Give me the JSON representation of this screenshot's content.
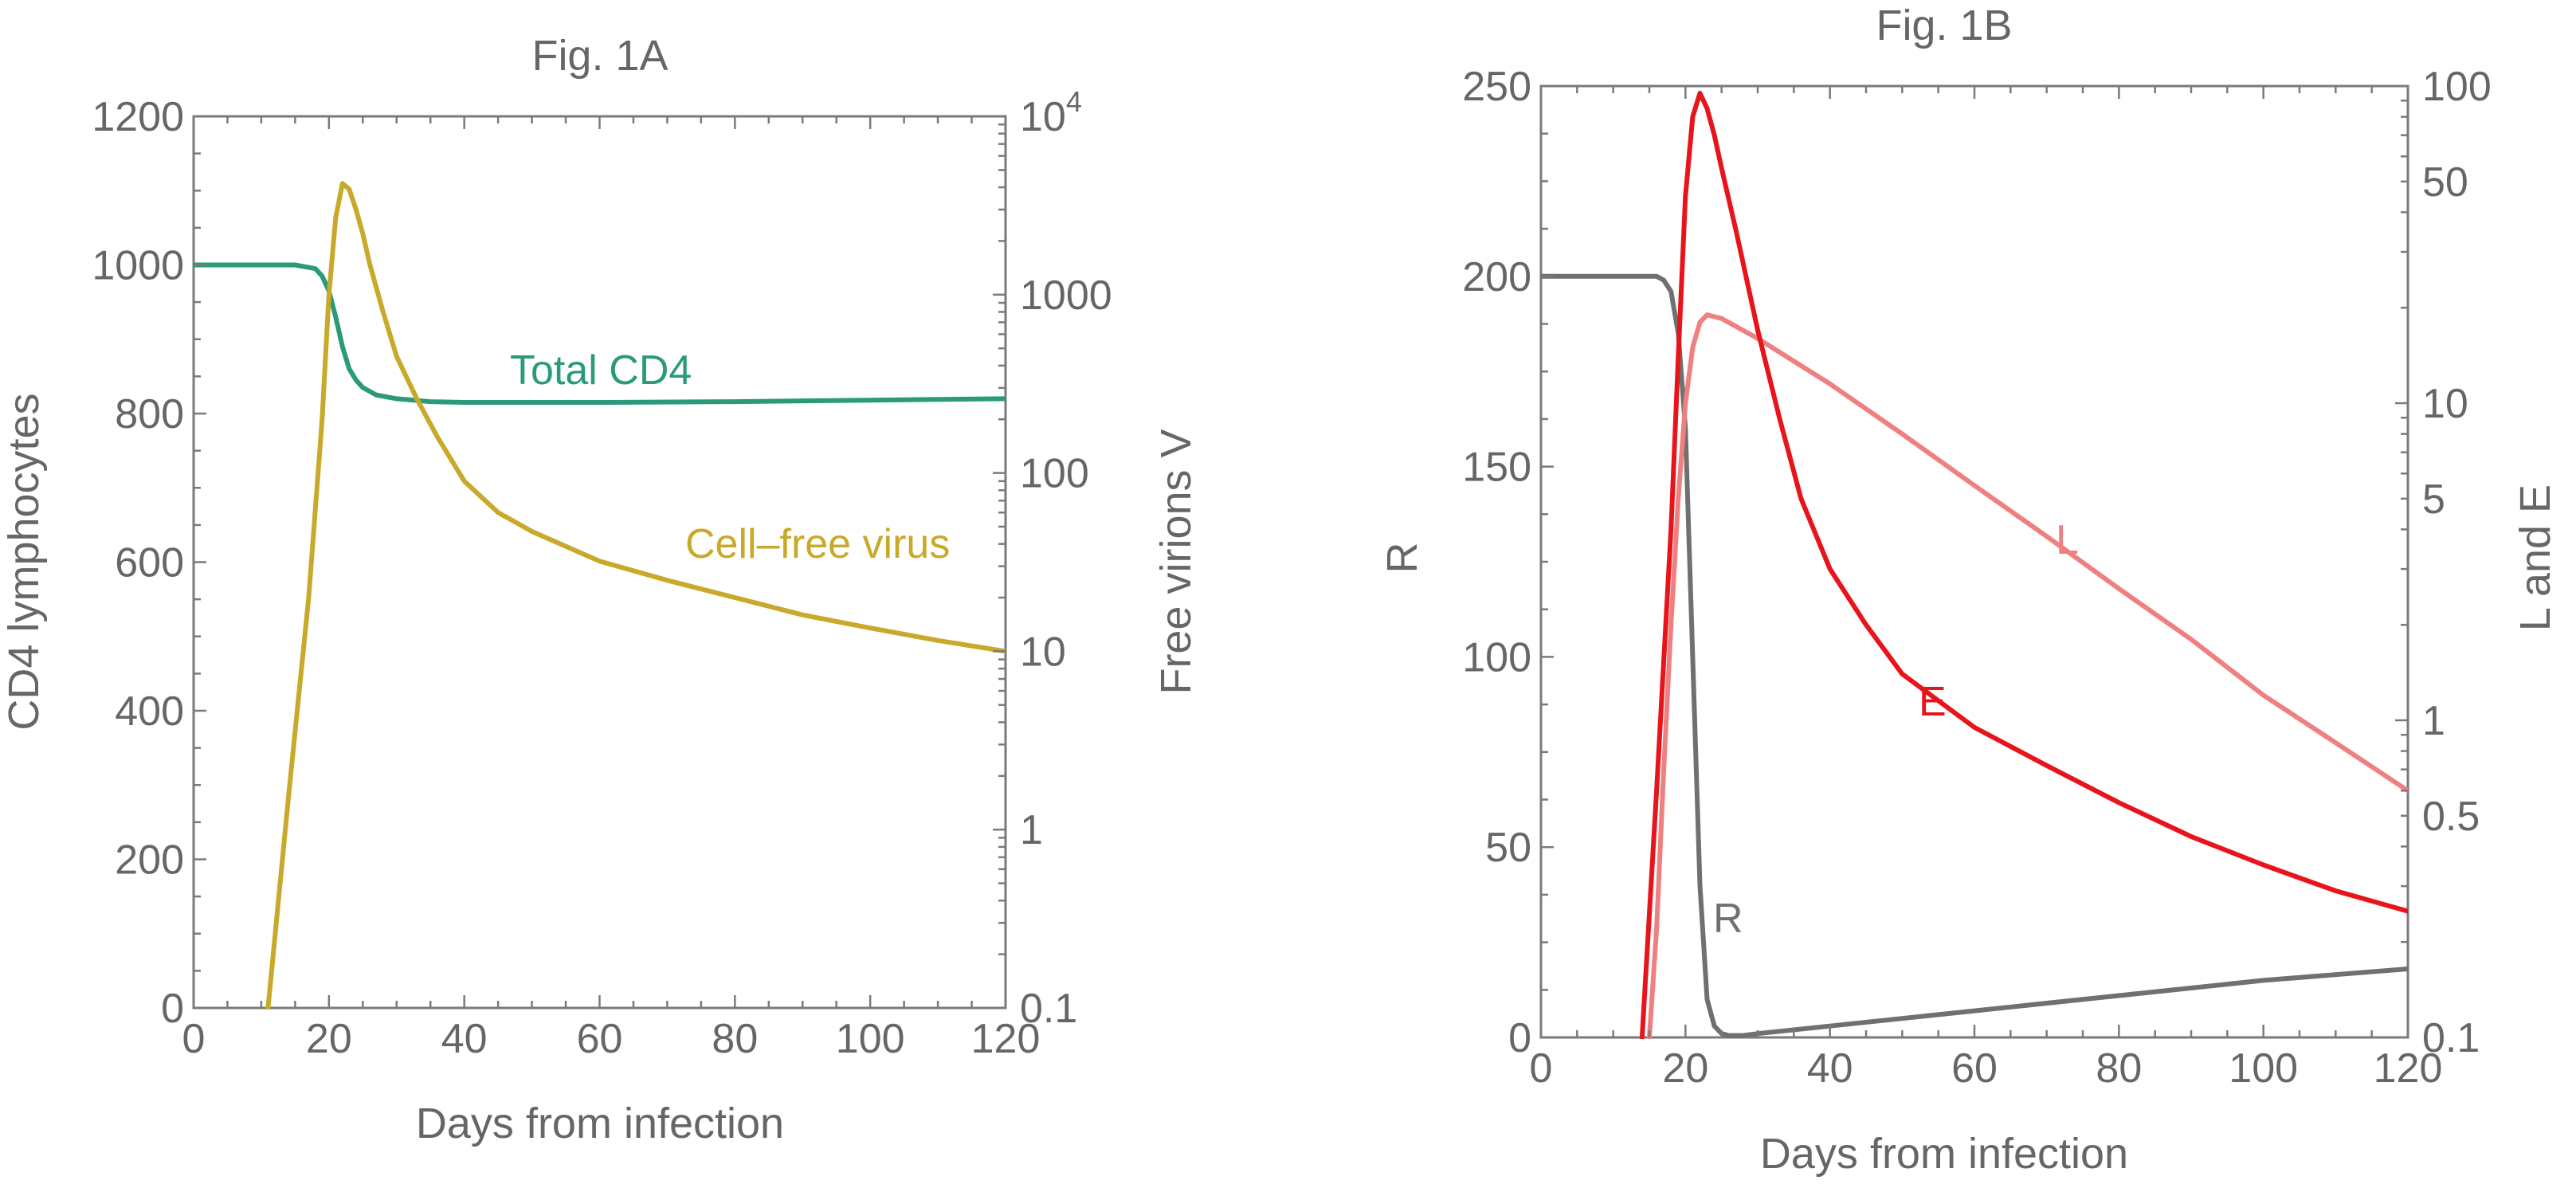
{
  "chart_data": [
    {
      "type": "line",
      "title": "Fig. 1A",
      "xlabel": "Days from infection",
      "ylabel": "CD4 lymphocytes",
      "y2label": "Free virions V",
      "xlim": [
        0,
        120
      ],
      "ylim": [
        0,
        1200
      ],
      "y2lim": [
        0.1,
        10000
      ],
      "y2scale": "log",
      "xticks": [
        "0",
        "20",
        "40",
        "60",
        "80",
        "100",
        "120"
      ],
      "yticks": [
        "0",
        "200",
        "400",
        "600",
        "800",
        "1000",
        "1200"
      ],
      "y2ticks": [
        {
          "value": 0.1,
          "label": "0.1"
        },
        {
          "value": 1,
          "label": "1"
        },
        {
          "value": 10,
          "label": "10"
        },
        {
          "value": 100,
          "label": "100"
        },
        {
          "value": 1000,
          "label": "1000"
        },
        {
          "value": 10000,
          "label": "10",
          "sup": "4"
        }
      ],
      "series": [
        {
          "name": "Total CD4",
          "axis": "left",
          "color": "#2a9a7a",
          "x": [
            0,
            15,
            18,
            19,
            20,
            21,
            22,
            23,
            24,
            25,
            27,
            30,
            35,
            40,
            50,
            60,
            80,
            100,
            120
          ],
          "y": [
            1000,
            1000,
            995,
            985,
            965,
            930,
            890,
            860,
            845,
            835,
            825,
            820,
            816,
            815,
            815,
            815,
            816,
            818,
            820
          ]
        },
        {
          "name": "Cell–free virus",
          "axis": "right",
          "color": "#c8a92a",
          "x": [
            11,
            14,
            17,
            19,
            20,
            21,
            22,
            23,
            24,
            25,
            26,
            28,
            30,
            33,
            36,
            40,
            45,
            50,
            60,
            70,
            80,
            90,
            100,
            110,
            120
          ],
          "y": [
            0.1,
            1.5,
            20,
            200,
            1000,
            2700,
            4200,
            3900,
            3000,
            2200,
            1500,
            800,
            450,
            260,
            160,
            90,
            60,
            47,
            32,
            25,
            20,
            16,
            13.5,
            11.5,
            10
          ]
        }
      ]
    },
    {
      "type": "line",
      "title": "Fig. 1B",
      "xlabel": "Days from infection",
      "ylabel": "R",
      "y2label": "L and E",
      "xlim": [
        0,
        120
      ],
      "ylim": [
        0,
        250
      ],
      "y2lim": [
        0.1,
        100
      ],
      "y2scale": "log",
      "xticks": [
        "0",
        "20",
        "40",
        "60",
        "80",
        "100",
        "120"
      ],
      "yticks": [
        "0",
        "50",
        "100",
        "150",
        "200",
        "250"
      ],
      "y2ticks": [
        {
          "value": 0.1,
          "label": "0.1"
        },
        {
          "value": 0.5,
          "label": "0.5"
        },
        {
          "value": 1,
          "label": "1"
        },
        {
          "value": 5,
          "label": "5"
        },
        {
          "value": 10,
          "label": "10"
        },
        {
          "value": 50,
          "label": "50"
        },
        {
          "value": 100,
          "label": "100"
        }
      ],
      "series": [
        {
          "name": "R",
          "axis": "left",
          "color": "#707070",
          "x": [
            0,
            16,
            17,
            18,
            19,
            20,
            21,
            22,
            23,
            24,
            25,
            26,
            28,
            30,
            40,
            60,
            80,
            100,
            120
          ],
          "y": [
            200,
            200,
            199,
            196,
            185,
            160,
            100,
            40,
            10,
            3,
            1,
            0.5,
            0.5,
            1,
            3,
            7,
            11,
            15,
            18
          ]
        },
        {
          "name": "L",
          "axis": "right",
          "color": "#f08080",
          "x": [
            15,
            16,
            17,
            18,
            19,
            20,
            21,
            22,
            23,
            25,
            30,
            40,
            50,
            60,
            70,
            80,
            90,
            100,
            110,
            120
          ],
          "y": [
            0.1,
            0.22,
            0.7,
            2,
            5,
            10,
            15,
            18,
            19,
            18.5,
            16,
            11.5,
            8,
            5.5,
            3.8,
            2.6,
            1.8,
            1.2,
            0.85,
            0.6
          ]
        },
        {
          "name": "E",
          "axis": "right",
          "color": "#e8141c",
          "x": [
            14,
            16,
            18,
            19,
            20,
            21,
            22,
            23,
            24,
            25,
            27,
            30,
            33,
            36,
            40,
            45,
            50,
            60,
            70,
            80,
            90,
            100,
            110,
            120
          ],
          "y": [
            0.1,
            0.6,
            4,
            14,
            45,
            80,
            95,
            85,
            70,
            55,
            35,
            17,
            9,
            5,
            3,
            2,
            1.4,
            0.95,
            0.72,
            0.55,
            0.43,
            0.35,
            0.29,
            0.25
          ]
        }
      ]
    }
  ]
}
